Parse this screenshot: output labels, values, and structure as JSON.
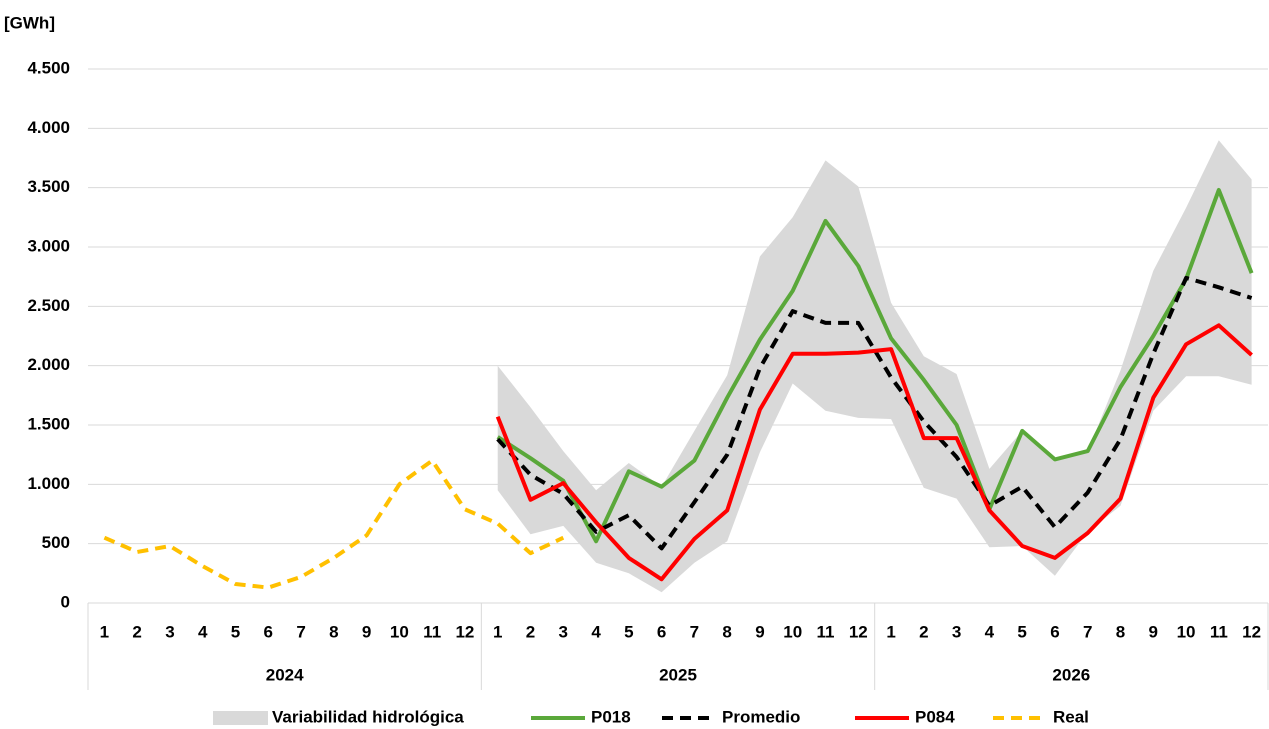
{
  "chart_data": {
    "type": "line",
    "y_label": "[GWh]",
    "categories": [
      "1",
      "2",
      "3",
      "4",
      "5",
      "6",
      "7",
      "8",
      "9",
      "10",
      "11",
      "12",
      "1",
      "2",
      "3",
      "4",
      "5",
      "6",
      "7",
      "8",
      "9",
      "10",
      "11",
      "12",
      "1",
      "2",
      "3",
      "4",
      "5",
      "6",
      "7",
      "8",
      "9",
      "10",
      "11",
      "12"
    ],
    "year_groups": [
      "2024",
      "2025",
      "2026"
    ],
    "ylim": [
      0,
      4500
    ],
    "yticks": [
      0,
      500,
      {
        "value": 1000,
        "label": "1.000"
      },
      {
        "value": 1500,
        "label": "1.500"
      },
      {
        "value": 2000,
        "label": "2.000"
      },
      {
        "value": 2500,
        "label": "2.500"
      },
      {
        "value": 3000,
        "label": "3.000"
      },
      {
        "value": 3500,
        "label": "3.500"
      },
      {
        "value": 4000,
        "label": "4.000"
      },
      {
        "value": 4500,
        "label": "4.500"
      }
    ],
    "grid": true,
    "band": {
      "name": "Variabilidad hidrológica",
      "color": "#d9d9d9",
      "low": [
        null,
        null,
        null,
        null,
        null,
        null,
        null,
        null,
        null,
        null,
        null,
        null,
        950,
        580,
        650,
        340,
        250,
        90,
        340,
        520,
        1270,
        1850,
        1620,
        1560,
        1550,
        970,
        880,
        470,
        480,
        230,
        600,
        820,
        1620,
        1910,
        1910,
        1840
      ],
      "high": [
        null,
        null,
        null,
        null,
        null,
        null,
        null,
        null,
        null,
        null,
        null,
        null,
        2000,
        1650,
        1280,
        950,
        1180,
        980,
        1450,
        1920,
        2920,
        3250,
        3730,
        3510,
        2530,
        2080,
        1930,
        1130,
        1450,
        1210,
        1280,
        1960,
        2800,
        3330,
        3900,
        3570
      ]
    },
    "series": [
      {
        "name": "P018",
        "color": "#5aa83a",
        "dashed": false,
        "values": [
          null,
          null,
          null,
          null,
          null,
          null,
          null,
          null,
          null,
          null,
          null,
          null,
          1400,
          1220,
          1030,
          520,
          1110,
          980,
          1200,
          1730,
          2220,
          2630,
          3220,
          2840,
          2230,
          1880,
          1500,
          790,
          1450,
          1210,
          1280,
          1820,
          2250,
          2730,
          3480,
          2780
        ]
      },
      {
        "name": "Promedio",
        "color": "#000000",
        "dashed": true,
        "values": [
          null,
          null,
          null,
          null,
          null,
          null,
          null,
          null,
          null,
          null,
          null,
          null,
          1380,
          1080,
          920,
          600,
          740,
          460,
          850,
          1250,
          1980,
          2460,
          2360,
          2360,
          1900,
          1530,
          1230,
          820,
          980,
          640,
          930,
          1380,
          2100,
          2740,
          2660,
          2570
        ]
      },
      {
        "name": "P084",
        "color": "#ff0000",
        "dashed": false,
        "values": [
          null,
          null,
          null,
          null,
          null,
          null,
          null,
          null,
          null,
          null,
          null,
          null,
          1570,
          870,
          1010,
          680,
          380,
          200,
          540,
          780,
          1630,
          2100,
          2100,
          2110,
          2140,
          1390,
          1390,
          780,
          480,
          380,
          590,
          880,
          1730,
          2180,
          2340,
          2090
        ]
      },
      {
        "name": "Real",
        "color": "#ffc000",
        "dashed": true,
        "values": [
          550,
          430,
          480,
          310,
          160,
          130,
          220,
          380,
          570,
          1000,
          1200,
          790,
          670,
          420,
          550,
          null,
          null,
          null,
          null,
          null,
          null,
          null,
          null,
          null,
          null,
          null,
          null,
          null,
          null,
          null,
          null,
          null,
          null,
          null,
          null,
          null
        ]
      }
    ]
  }
}
